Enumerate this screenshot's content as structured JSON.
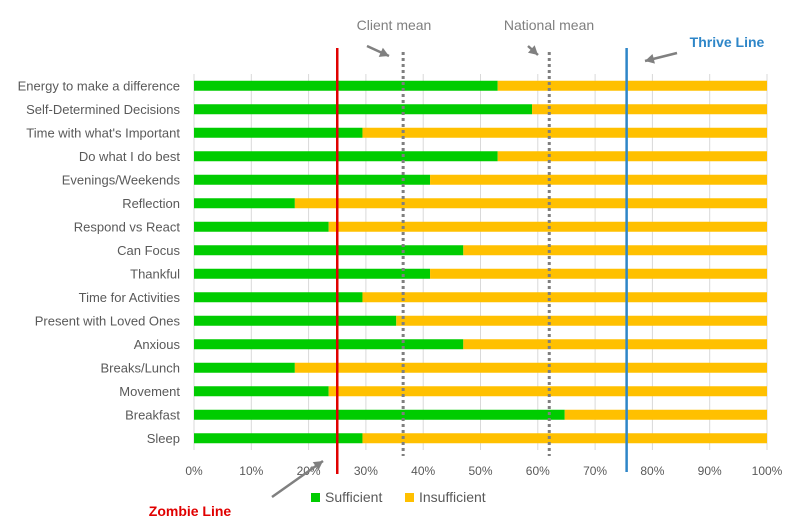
{
  "chart_data": {
    "type": "bar",
    "orientation": "horizontal",
    "stacked": true,
    "categories": [
      "Energy to make a difference",
      "Self-Determined Decisions",
      "Time with what's Important",
      "Do what I do best",
      "Evenings/Weekends",
      "Reflection",
      "Respond vs React",
      "Can Focus",
      "Thankful",
      "Time for Activities",
      "Present with Loved Ones",
      "Anxious",
      "Breaks/Lunch",
      "Movement",
      "Breakfast",
      "Sleep"
    ],
    "series": [
      {
        "name": "Sufficient",
        "color": "#00cc00",
        "values": [
          53,
          59,
          29.4,
          53,
          41.2,
          17.6,
          23.5,
          47,
          41.2,
          29.4,
          35.3,
          47,
          17.6,
          23.5,
          64.7,
          29.4
        ]
      },
      {
        "name": "Insufficient",
        "color": "#ffc000",
        "values": [
          47,
          41,
          70.6,
          47,
          58.8,
          82.4,
          76.5,
          53,
          58.8,
          70.6,
          64.7,
          53,
          82.4,
          76.5,
          35.3,
          70.6
        ]
      }
    ],
    "xlim": [
      0,
      100
    ],
    "x_ticks": [
      "0%",
      "10%",
      "20%",
      "30%",
      "40%",
      "50%",
      "60%",
      "70%",
      "80%",
      "90%",
      "100%"
    ],
    "grid": true,
    "legend_position": "bottom",
    "reference_lines": [
      {
        "label": "Zombie Line",
        "value": 25,
        "color": "#e00000",
        "style": "solid"
      },
      {
        "label": "Client mean",
        "value": 36.5,
        "color": "#7f7f7f",
        "style": "dotted"
      },
      {
        "label": "National mean",
        "value": 62,
        "color": "#7f7f7f",
        "style": "dotted"
      },
      {
        "label": "Thrive Line",
        "value": 75.5,
        "color": "#2e86c8",
        "style": "solid"
      }
    ]
  }
}
